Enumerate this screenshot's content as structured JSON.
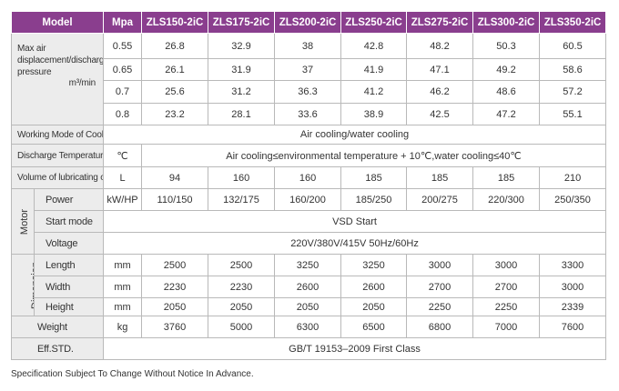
{
  "table": {
    "header": [
      "Model",
      "Mpa",
      "ZLS150-2iC",
      "ZLS175-2iC",
      "ZLS200-2iC",
      "ZLS250-2iC",
      "ZLS275-2iC",
      "ZLS300-2iC",
      "ZLS350-2iC"
    ],
    "displacement": {
      "label": "Max air displacement/discharge pressure",
      "unit": "m³/min",
      "rows": [
        {
          "pressure": "0.55",
          "values": [
            "26.8",
            "32.9",
            "38",
            "42.8",
            "48.2",
            "50.3",
            "60.5"
          ]
        },
        {
          "pressure": "0.65",
          "values": [
            "26.1",
            "31.9",
            "37",
            "41.9",
            "47.1",
            "49.2",
            "58.6"
          ]
        },
        {
          "pressure": "0.7",
          "values": [
            "25.6",
            "31.2",
            "36.3",
            "41.2",
            "46.2",
            "48.6",
            "57.2"
          ]
        },
        {
          "pressure": "0.8",
          "values": [
            "23.2",
            "28.1",
            "33.6",
            "38.9",
            "42.5",
            "47.2",
            "55.1"
          ]
        }
      ]
    },
    "rows": [
      {
        "label": "Working Mode of Cooler",
        "value": "Air cooling/water cooling"
      },
      {
        "label": "Discharge Temperature",
        "unit": "℃",
        "value": "Air cooling≤environmental temperature + 10℃,water cooling≤40℃"
      },
      {
        "label": "Volume of lubricating oil",
        "unit": "L",
        "values": [
          "94",
          "160",
          "160",
          "185",
          "185",
          "185",
          "210"
        ]
      },
      {
        "group": "Motor",
        "rows": [
          {
            "label": "Power",
            "unit": "kW/HP",
            "values": [
              "110/150",
              "132/175",
              "160/200",
              "185/250",
              "200/275",
              "220/300",
              "250/350"
            ]
          },
          {
            "label": "Start mode",
            "value": "VSD Start"
          },
          {
            "label": "Voltage",
            "value": "220V/380V/415V 50Hz/60Hz"
          }
        ]
      },
      {
        "group": "Dimension",
        "rows": [
          {
            "label": "Length",
            "unit": "mm",
            "values": [
              "2500",
              "2500",
              "3250",
              "3250",
              "3000",
              "3000",
              "3300"
            ]
          },
          {
            "label": "Width",
            "unit": "mm",
            "values": [
              "2230",
              "2230",
              "2600",
              "2600",
              "2700",
              "2700",
              "3000"
            ]
          },
          {
            "label": "Height",
            "unit": "mm",
            "values": [
              "2050",
              "2050",
              "2050",
              "2050",
              "2250",
              "2250",
              "2339"
            ]
          }
        ]
      },
      {
        "label": "Weight",
        "unit": "kg",
        "values": [
          "3760",
          "5000",
          "6300",
          "6500",
          "6800",
          "7000",
          "7600"
        ]
      },
      {
        "label": "Eff.STD.",
        "value": "GB/T 19153–2009 First Class"
      }
    ]
  },
  "footer": "Specification Subject To Change Without Notice In Advance."
}
